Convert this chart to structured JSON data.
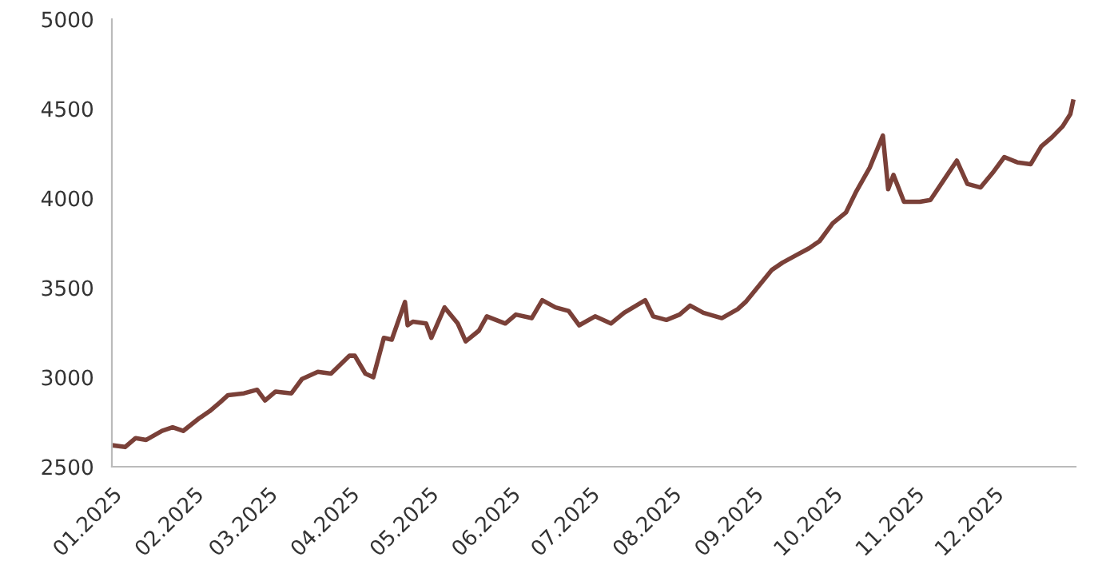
{
  "chart_data": {
    "type": "line",
    "x": [
      "2025-01-01",
      "2025-01-06",
      "2025-01-10",
      "2025-01-14",
      "2025-01-20",
      "2025-01-24",
      "2025-01-28",
      "2025-02-03",
      "2025-02-07",
      "2025-02-11",
      "2025-02-14",
      "2025-02-20",
      "2025-02-25",
      "2025-02-28",
      "2025-03-04",
      "2025-03-10",
      "2025-03-14",
      "2025-03-20",
      "2025-03-25",
      "2025-04-01",
      "2025-04-03",
      "2025-04-07",
      "2025-04-10",
      "2025-04-14",
      "2025-04-17",
      "2025-04-22",
      "2025-04-23",
      "2025-04-25",
      "2025-04-30",
      "2025-05-02",
      "2025-05-07",
      "2025-05-12",
      "2025-05-15",
      "2025-05-20",
      "2025-05-23",
      "2025-05-30",
      "2025-06-03",
      "2025-06-09",
      "2025-06-13",
      "2025-06-18",
      "2025-06-23",
      "2025-06-27",
      "2025-07-03",
      "2025-07-09",
      "2025-07-14",
      "2025-07-22",
      "2025-07-25",
      "2025-07-30",
      "2025-08-04",
      "2025-08-08",
      "2025-08-13",
      "2025-08-20",
      "2025-08-26",
      "2025-08-29",
      "2025-09-03",
      "2025-09-08",
      "2025-09-12",
      "2025-09-17",
      "2025-09-22",
      "2025-09-26",
      "2025-10-01",
      "2025-10-06",
      "2025-10-10",
      "2025-10-15",
      "2025-10-20",
      "2025-10-22",
      "2025-10-24",
      "2025-10-28",
      "2025-11-03",
      "2025-11-07",
      "2025-11-12",
      "2025-11-17",
      "2025-11-21",
      "2025-11-26",
      "2025-12-01",
      "2025-12-05",
      "2025-12-10",
      "2025-12-15",
      "2025-12-19",
      "2025-12-23",
      "2025-12-27",
      "2025-12-30",
      "2025-12-31"
    ],
    "series": [
      {
        "color": "#7a4038",
        "values": [
          2620,
          2610,
          2660,
          2650,
          2700,
          2720,
          2700,
          2770,
          2810,
          2860,
          2900,
          2910,
          2930,
          2870,
          2920,
          2910,
          2990,
          3030,
          3020,
          3120,
          3120,
          3020,
          3000,
          3220,
          3210,
          3420,
          3290,
          3310,
          3300,
          3220,
          3390,
          3300,
          3200,
          3260,
          3340,
          3300,
          3350,
          3330,
          3430,
          3390,
          3370,
          3290,
          3340,
          3300,
          3360,
          3430,
          3340,
          3320,
          3350,
          3400,
          3360,
          3330,
          3380,
          3420,
          3510,
          3600,
          3640,
          3680,
          3720,
          3760,
          3860,
          3920,
          4040,
          4170,
          4350,
          4050,
          4130,
          3980,
          3980,
          3990,
          4100,
          4210,
          4080,
          4060,
          4150,
          4230,
          4200,
          4190,
          4290,
          4340,
          4400,
          4470,
          4540
        ]
      }
    ],
    "ylim": [
      2500,
      5000
    ],
    "yticks": [
      2500,
      3000,
      3500,
      4000,
      4500,
      5000
    ],
    "xlim": [
      "2025-01-01",
      "2026-01-01"
    ],
    "xticks": [
      {
        "value": "2025-01-01",
        "label": "01.2025"
      },
      {
        "value": "2025-02-01",
        "label": "02.2025"
      },
      {
        "value": "2025-03-01",
        "label": "03.2025"
      },
      {
        "value": "2025-04-01",
        "label": "04.2025"
      },
      {
        "value": "2025-05-01",
        "label": "05.2025"
      },
      {
        "value": "2025-06-01",
        "label": "06.2025"
      },
      {
        "value": "2025-07-01",
        "label": "07.2025"
      },
      {
        "value": "2025-08-01",
        "label": "08.2025"
      },
      {
        "value": "2025-09-01",
        "label": "09.2025"
      },
      {
        "value": "2025-10-01",
        "label": "10.2025"
      },
      {
        "value": "2025-11-01",
        "label": "11.2025"
      },
      {
        "value": "2025-12-01",
        "label": "12.2025"
      }
    ],
    "grid": false,
    "marker": "none",
    "line_style": "solid"
  }
}
